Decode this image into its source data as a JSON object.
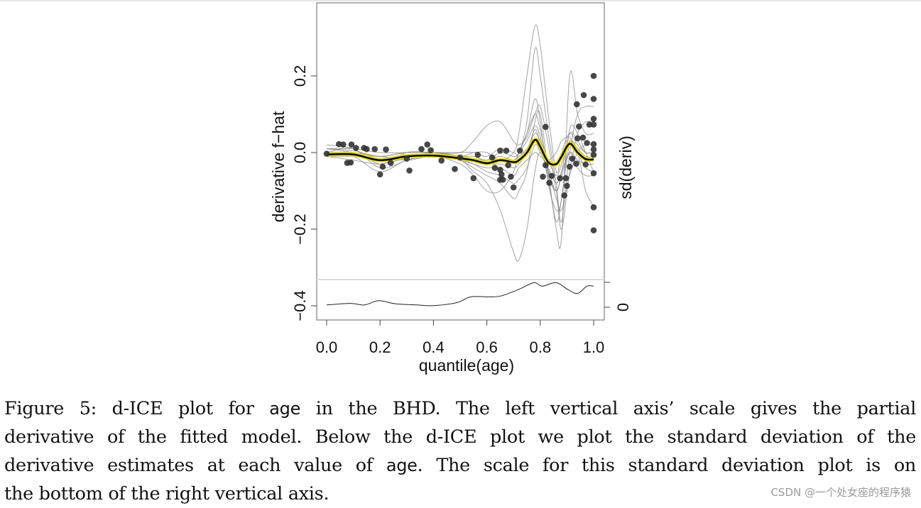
{
  "chart_data": {
    "type": "line",
    "title": "",
    "xlabel": "quantile(age)",
    "ylabel": "derivative f−hat",
    "ylabel_right": "sd(deriv)",
    "xlim": [
      0,
      1
    ],
    "ylim": [
      -0.42,
      0.34
    ],
    "x_ticks": [
      {
        "value": 0,
        "label": "0.0"
      },
      {
        "value": 0.2,
        "label": "0.2"
      },
      {
        "value": 0.4,
        "label": "0.4"
      },
      {
        "value": 0.6,
        "label": "0.6"
      },
      {
        "value": 0.8,
        "label": "0.8"
      },
      {
        "value": 1.0,
        "label": "1.0"
      }
    ],
    "y_ticks": [
      {
        "value": 0.2,
        "label": "0.2"
      },
      {
        "value": 0,
        "label": "0.0"
      },
      {
        "value": -0.2,
        "label": "−0.2"
      },
      {
        "value": -0.4,
        "label": "−0.4"
      }
    ],
    "sd_ticks": [
      {
        "value": 0,
        "label": "0"
      },
      {
        "value": 0.065,
        "label": ""
      }
    ],
    "grid": false,
    "colors": {
      "ice": "#8c8c8c",
      "mean": "#000000",
      "mean_highlight": "#e8e000",
      "points": "#333333",
      "sd": "#222222",
      "separator": "#dddddd"
    },
    "x_grid": [
      0,
      0.1,
      0.2,
      0.3,
      0.4,
      0.5,
      0.55,
      0.6,
      0.65,
      0.7,
      0.72,
      0.75,
      0.78,
      0.8,
      0.83,
      0.86,
      0.88,
      0.91,
      0.94,
      0.97,
      1.0
    ],
    "mean_curve": [
      -0.005,
      -0.005,
      -0.02,
      -0.01,
      -0.008,
      -0.015,
      -0.02,
      -0.028,
      -0.02,
      -0.025,
      -0.02,
      0.0,
      0.033,
      0.015,
      -0.025,
      -0.03,
      -0.01,
      0.023,
      0.0,
      -0.017,
      -0.018
    ],
    "ice_curves": [
      [
        0,
        0,
        -0.01,
        0,
        0,
        -0.01,
        0,
        0,
        -0.02,
        0.0,
        0.05,
        0.2,
        0.33,
        0.28,
        0.1,
        -0.05,
        0.0,
        0.05,
        0.02,
        0.0,
        0.0
      ],
      [
        0.01,
        0,
        -0.02,
        -0.01,
        -0.01,
        -0.02,
        -0.05,
        -0.08,
        -0.15,
        -0.26,
        -0.28,
        -0.2,
        -0.05,
        0.0,
        -0.05,
        -0.1,
        -0.06,
        0.0,
        -0.02,
        -0.03,
        -0.03
      ],
      [
        0.02,
        0.01,
        -0.03,
        0,
        0,
        0.0,
        0.03,
        0.07,
        0.08,
        0.03,
        0.02,
        0.04,
        0.1,
        0.12,
        0.02,
        -0.1,
        -0.2,
        -0.05,
        0.05,
        0.08,
        0.08
      ],
      [
        0,
        0.01,
        -0.04,
        -0.02,
        0,
        -0.02,
        -0.04,
        -0.06,
        -0.08,
        -0.12,
        -0.1,
        -0.05,
        0.08,
        0.1,
        -0.05,
        -0.2,
        -0.22,
        0.2,
        0.1,
        0.05,
        0.05
      ],
      [
        -0.01,
        -0.01,
        -0.01,
        -0.02,
        -0.01,
        -0.03,
        -0.06,
        -0.1,
        -0.1,
        -0.05,
        0.0,
        0.05,
        0.14,
        0.08,
        -0.08,
        -0.15,
        -0.12,
        0.06,
        0.05,
        0.0,
        -0.05
      ],
      [
        0.0,
        0.0,
        -0.02,
        -0.01,
        0.0,
        -0.01,
        -0.02,
        -0.03,
        -0.02,
        -0.02,
        0.0,
        0.03,
        0.07,
        0.04,
        -0.06,
        -0.1,
        -0.05,
        0.05,
        0.03,
        0.0,
        0.0
      ],
      [
        -0.01,
        -0.02,
        -0.03,
        -0.015,
        -0.01,
        -0.02,
        -0.03,
        -0.04,
        -0.04,
        -0.06,
        -0.04,
        -0.02,
        0.0,
        -0.01,
        -0.02,
        0.0,
        0.03,
        0.04,
        0.0,
        -0.04,
        -0.05
      ],
      [
        0.01,
        0.01,
        0.0,
        0.0,
        0.0,
        -0.01,
        -0.01,
        -0.02,
        0.0,
        -0.01,
        0.0,
        0.05,
        0.1,
        0.06,
        -0.04,
        -0.12,
        -0.15,
        -0.06,
        0.0,
        0.02,
        0.02
      ],
      [
        0,
        0,
        -0.015,
        -0.005,
        -0.005,
        -0.01,
        -0.015,
        -0.02,
        -0.01,
        -0.02,
        -0.01,
        0.01,
        0.05,
        0.03,
        -0.02,
        -0.06,
        -0.03,
        0.03,
        0.01,
        -0.01,
        -0.01
      ],
      [
        -0.005,
        -0.01,
        -0.05,
        -0.02,
        -0.01,
        -0.02,
        -0.03,
        -0.05,
        -0.06,
        -0.08,
        -0.07,
        -0.04,
        0.02,
        0.0,
        -0.04,
        -0.08,
        -0.05,
        0.0,
        -0.04,
        -0.06,
        -0.06
      ],
      [
        0.01,
        0.005,
        -0.01,
        0.0,
        0.0,
        0.0,
        0.0,
        -0.01,
        0.01,
        0.0,
        0.0,
        0.08,
        0.27,
        0.2,
        0.05,
        -0.08,
        -0.18,
        0.0,
        0.1,
        0.12,
        0.12
      ],
      [
        0.0,
        -0.005,
        -0.02,
        -0.01,
        -0.01,
        -0.02,
        -0.02,
        -0.03,
        -0.03,
        -0.04,
        -0.03,
        0.0,
        0.06,
        0.02,
        -0.07,
        -0.18,
        -0.12,
        0.02,
        0.0,
        -0.1,
        -0.14
      ]
    ],
    "points": [
      [
        0,
        -0.003
      ],
      [
        0.046,
        0.022
      ],
      [
        0.062,
        0.021
      ],
      [
        0.077,
        -0.027
      ],
      [
        0.09,
        -0.026
      ],
      [
        0.093,
        0.021
      ],
      [
        0.11,
        0.012
      ],
      [
        0.14,
        0.012
      ],
      [
        0.15,
        0.009
      ],
      [
        0.18,
        0.009
      ],
      [
        0.2,
        -0.057
      ],
      [
        0.21,
        -0.037
      ],
      [
        0.222,
        0.008
      ],
      [
        0.24,
        -0.027
      ],
      [
        0.31,
        -0.047
      ],
      [
        0.3,
        -0.016
      ],
      [
        0.355,
        0.009
      ],
      [
        0.377,
        0.021
      ],
      [
        0.39,
        0.006
      ],
      [
        0.43,
        -0.021
      ],
      [
        0.48,
        -0.043
      ],
      [
        0.5,
        -0.013
      ],
      [
        0.55,
        -0.067
      ],
      [
        0.566,
        -0.006
      ],
      [
        0.62,
        -0.013
      ],
      [
        0.63,
        -0.04
      ],
      [
        0.65,
        0.005
      ],
      [
        0.65,
        -0.045
      ],
      [
        0.655,
        -0.057
      ],
      [
        0.65,
        -0.071
      ],
      [
        0.66,
        -0.071
      ],
      [
        0.673,
        0.005
      ],
      [
        0.68,
        -0.033
      ],
      [
        0.69,
        -0.063
      ],
      [
        0.7,
        -0.091
      ],
      [
        0.724,
        0.005
      ],
      [
        0.82,
        0.067
      ],
      [
        0.81,
        -0.063
      ],
      [
        0.82,
        -0.033
      ],
      [
        0.834,
        -0.079
      ],
      [
        0.843,
        -0.061
      ],
      [
        0.874,
        -0.067
      ],
      [
        0.89,
        -0.112
      ],
      [
        0.896,
        -0.067
      ],
      [
        0.9,
        -0.087
      ],
      [
        0.91,
        -0.037
      ],
      [
        0.92,
        -0.016
      ],
      [
        0.935,
        -0.029
      ],
      [
        0.937,
        0.126
      ],
      [
        0.963,
        0.15
      ],
      [
        0.945,
        0.068
      ],
      [
        0.94,
        0.037
      ],
      [
        0.96,
        0.039
      ],
      [
        0.97,
        -0.031
      ],
      [
        0.975,
        0.025
      ],
      [
        0.984,
        0.073
      ],
      [
        1.0,
        0.2
      ],
      [
        1.0,
        0.14
      ],
      [
        1.0,
        0.088
      ],
      [
        1.0,
        0.073
      ],
      [
        1.0,
        0.022
      ],
      [
        1.0,
        0.008
      ],
      [
        1.0,
        -0.006
      ],
      [
        1.0,
        -0.054
      ],
      [
        1.0,
        -0.143
      ],
      [
        1.0,
        -0.203
      ]
    ],
    "sd_curve": {
      "x": [
        0,
        0.089,
        0.141,
        0.195,
        0.257,
        0.337,
        0.399,
        0.488,
        0.54,
        0.612,
        0.656,
        0.718,
        0.776,
        0.807,
        0.86,
        0.904,
        0.94,
        0.975,
        1.0
      ],
      "y": [
        0.006,
        0.01,
        0.006,
        0.017,
        0.009,
        0.006,
        0.004,
        0.012,
        0.027,
        0.027,
        0.03,
        0.046,
        0.064,
        0.055,
        0.064,
        0.046,
        0.036,
        0.055,
        0.055
      ]
    }
  },
  "caption": {
    "lines": [
      [
        "Figure 5:  d-ICE plot for ",
        {
          "code": "age"
        },
        " in the BHD. The left vertical axis’ scale gives the partial"
      ],
      [
        "derivative of the fitted model.  Below the d-ICE plot we plot the standard deviation of the"
      ],
      [
        "derivative estimates at each value of ",
        {
          "code": "age"
        },
        ".  The scale for this standard deviation plot is on"
      ],
      [
        "the bottom of the right vertical axis."
      ]
    ]
  },
  "watermark": "CSDN @一个处女座的程序猿"
}
